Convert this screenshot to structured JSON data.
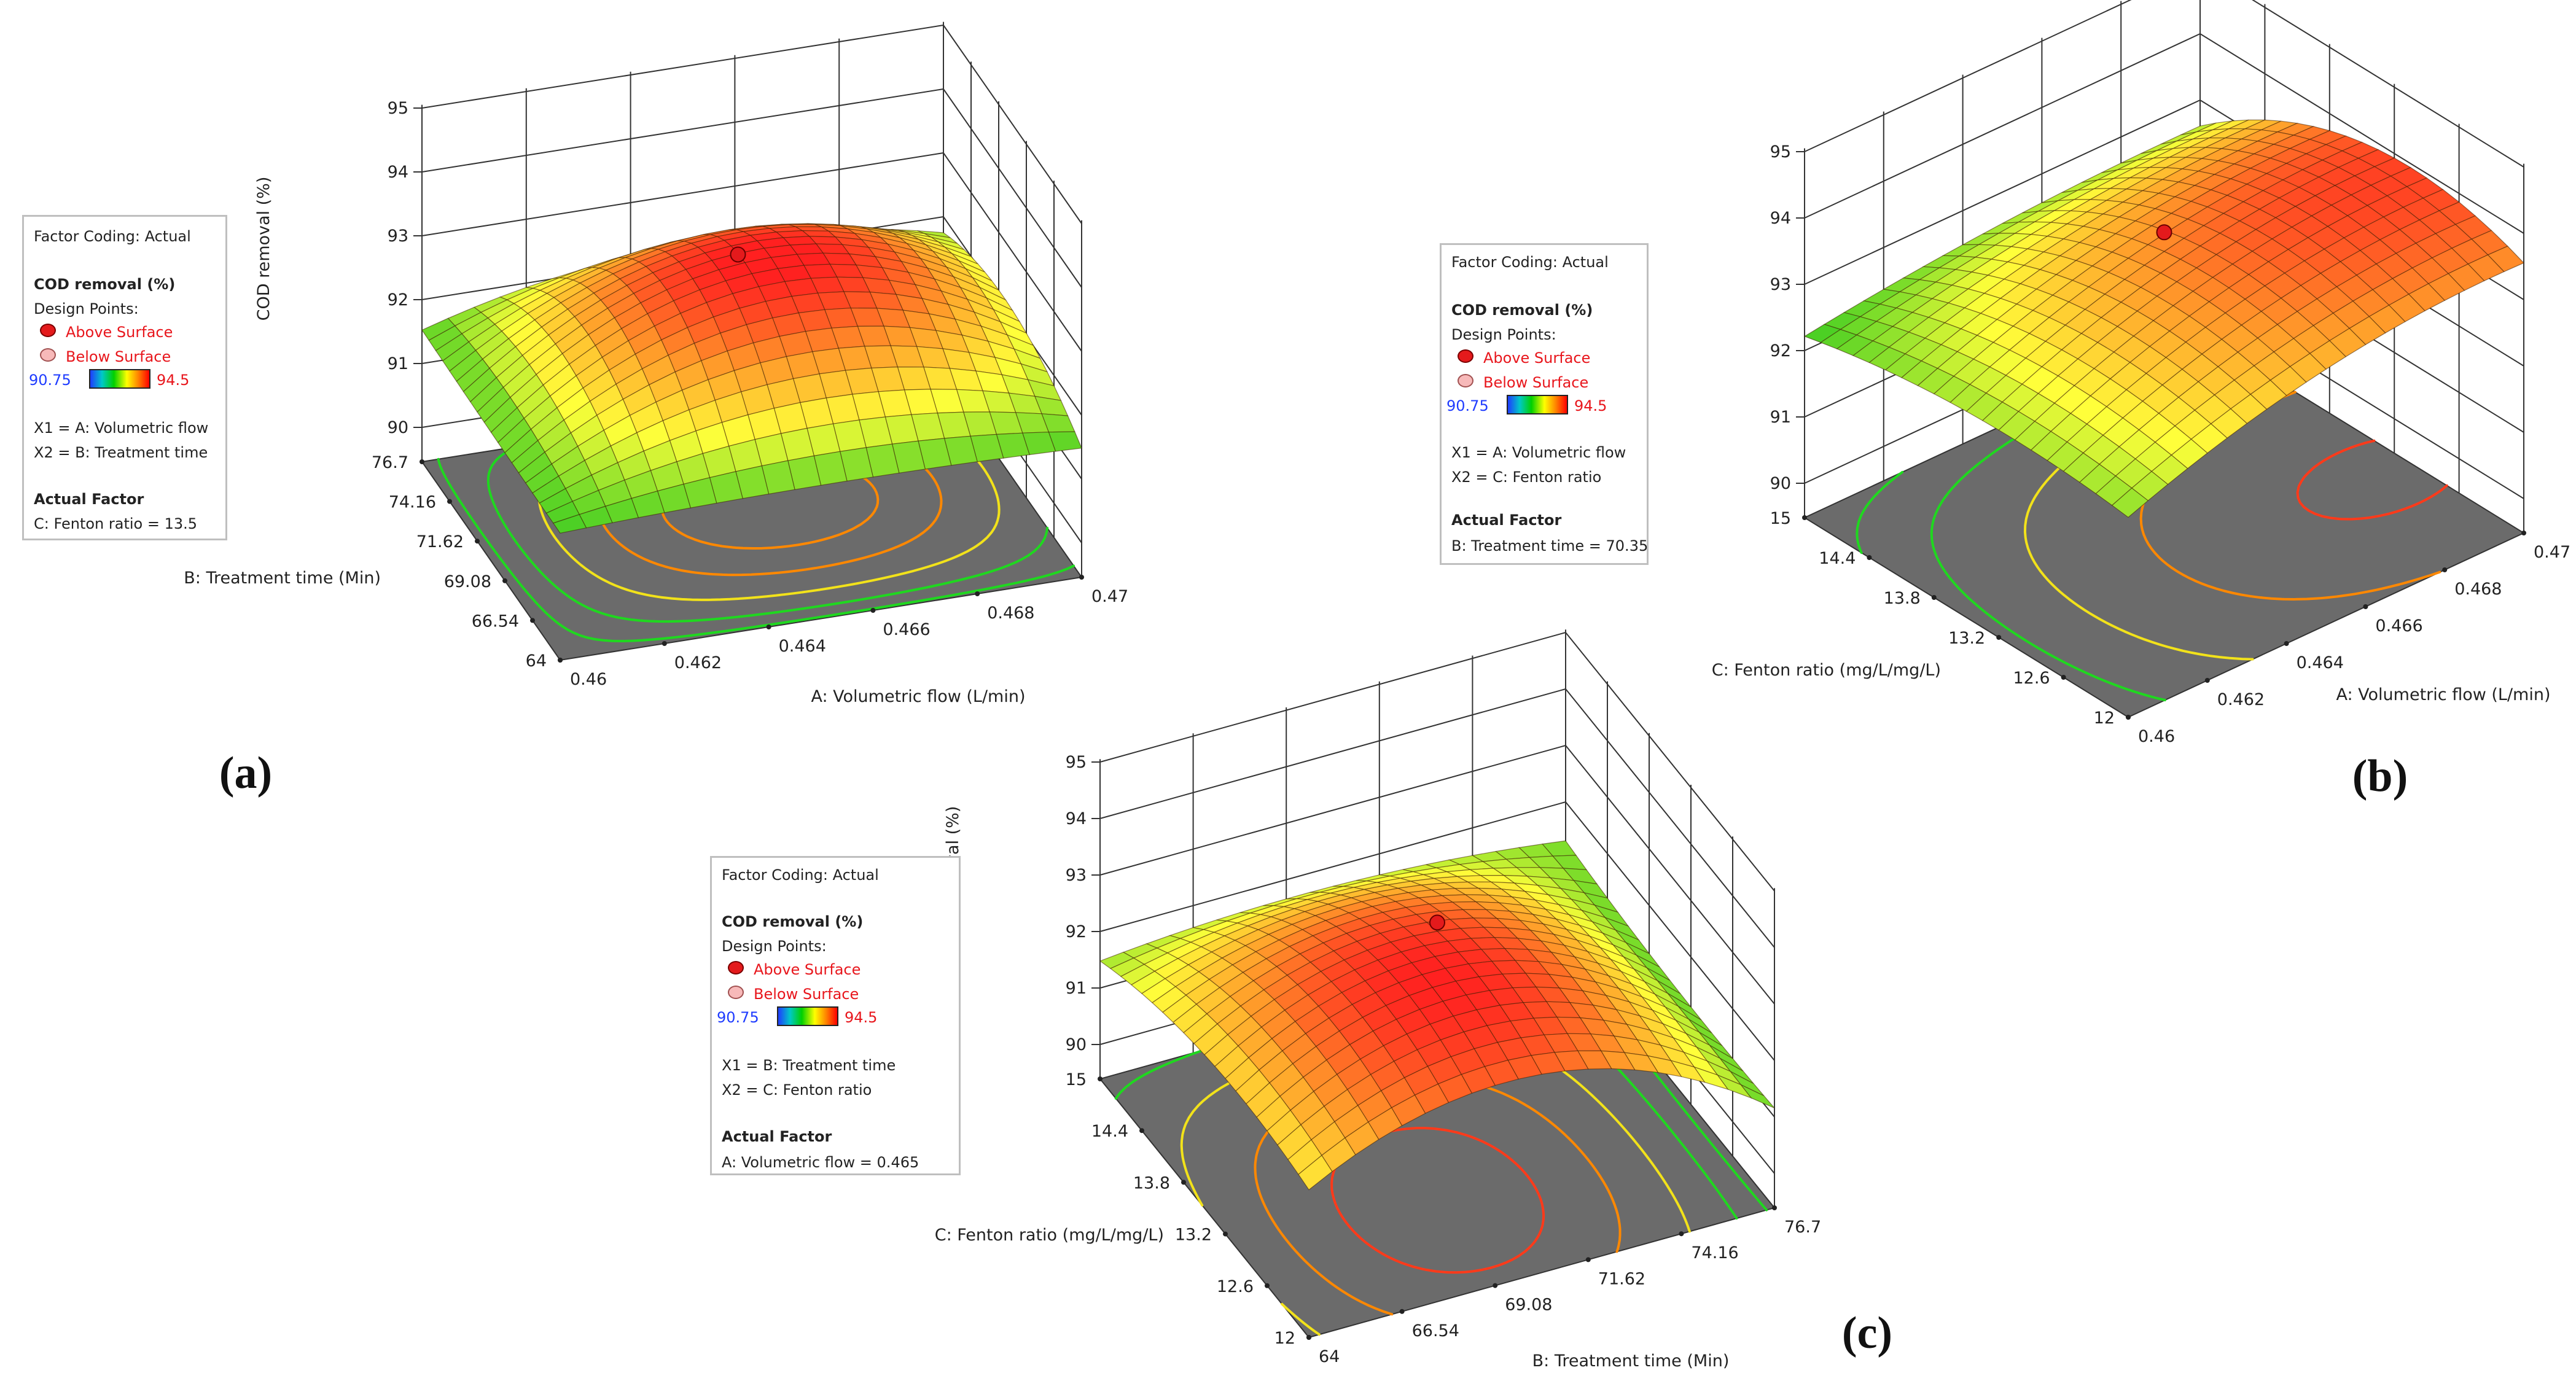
{
  "panel_labels": [
    "(a)",
    "(b)",
    "(c)"
  ],
  "legend_common": {
    "factor_coding": "Factor Coding: Actual",
    "response": "COD removal (%)",
    "design_points": "Design Points:",
    "above": "Above Surface",
    "below": "Below Surface",
    "scale_min": "90.75",
    "scale_max": "94.5",
    "actual_factor_heading": "Actual Factor"
  },
  "colors": {
    "surface_low": "#1fc41f",
    "surface_mid": "#ffff3a",
    "surface_orange": "#ff9a2a",
    "surface_high": "#ff2020",
    "floor": "#6b6b6b",
    "contour_outer": "#1fd81f",
    "contour_mid": "#f2e21a",
    "contour_inner": "#ff8800",
    "contour_red": "#ff3a1a",
    "contour_cyan": "#22d6c0",
    "design_point_above": "#e41a1c",
    "scale_low_text": "#1f3cff",
    "scale_high_text": "#e8161c"
  },
  "chart_data": [
    {
      "type": "surface",
      "panel": "(a)",
      "zlabel": "COD removal (%)",
      "xlabel": "A: Volumetric flow (L/min)",
      "ylabel": "B: Treatment time (Min)",
      "x_ticks": [
        "0.46",
        "0.462",
        "0.464",
        "0.466",
        "0.468",
        "0.47"
      ],
      "y_ticks": [
        "64",
        "66.54",
        "69.08",
        "71.62",
        "74.16",
        "76.7"
      ],
      "z_ticks": [
        "90",
        "91",
        "92",
        "93",
        "94",
        "95"
      ],
      "xlim": [
        0.46,
        0.47
      ],
      "ylim": [
        64,
        76.7
      ],
      "zlim": [
        90,
        95
      ],
      "x1": "X1 = A: Volumetric flow",
      "x2": "X2 = B: Treatment time",
      "actual_factor": "C: Fenton ratio = 13.5",
      "surface_z_range": [
        91.3,
        93.3
      ],
      "design_point": {
        "x": 0.465,
        "y": 71.62,
        "z": 93.3,
        "position": "Above Surface"
      }
    },
    {
      "type": "surface",
      "panel": "(b)",
      "zlabel": "COD removal (%)",
      "xlabel": "A: Volumetric flow (L/min)",
      "ylabel": "C: Fenton ratio (mg/L/mg/L)",
      "x_ticks": [
        "0.46",
        "0.462",
        "0.464",
        "0.466",
        "0.468",
        "0.47"
      ],
      "y_ticks": [
        "12",
        "12.6",
        "13.2",
        "13.8",
        "14.4",
        "15"
      ],
      "z_ticks": [
        "90",
        "91",
        "92",
        "93",
        "94",
        "95"
      ],
      "xlim": [
        0.46,
        0.47
      ],
      "ylim": [
        12,
        15
      ],
      "zlim": [
        90,
        95
      ],
      "x1": "X1 = A: Volumetric flow",
      "x2": "X2 = C: Fenton ratio",
      "actual_factor": "B: Treatment time = 70.35",
      "surface_z_range": [
        92.1,
        94.1
      ],
      "design_point": {
        "x": 0.465,
        "y": 13.5,
        "z": 93.9,
        "position": "Above Surface"
      }
    },
    {
      "type": "surface",
      "panel": "(c)",
      "zlabel": "COD removal (%)",
      "xlabel": "B: Treatment time (Min)",
      "ylabel": "C: Fenton ratio (mg/L/mg/L)",
      "x_ticks": [
        "64",
        "66.54",
        "69.08",
        "71.62",
        "74.16",
        "76.7"
      ],
      "y_ticks": [
        "12",
        "12.6",
        "13.2",
        "13.8",
        "14.4",
        "15"
      ],
      "z_ticks": [
        "90",
        "91",
        "92",
        "93",
        "94",
        "95"
      ],
      "xlim": [
        64,
        76.7
      ],
      "ylim": [
        12,
        15
      ],
      "zlim": [
        90,
        95
      ],
      "x1": "X1 = B: Treatment time",
      "x2": "X2 = C: Fenton ratio",
      "actual_factor": "A: Volumetric flow = 0.465",
      "surface_z_range": [
        90.9,
        93.3
      ],
      "design_point": {
        "x": 70.35,
        "y": 13.5,
        "z": 93.3,
        "position": "Above Surface"
      }
    }
  ]
}
